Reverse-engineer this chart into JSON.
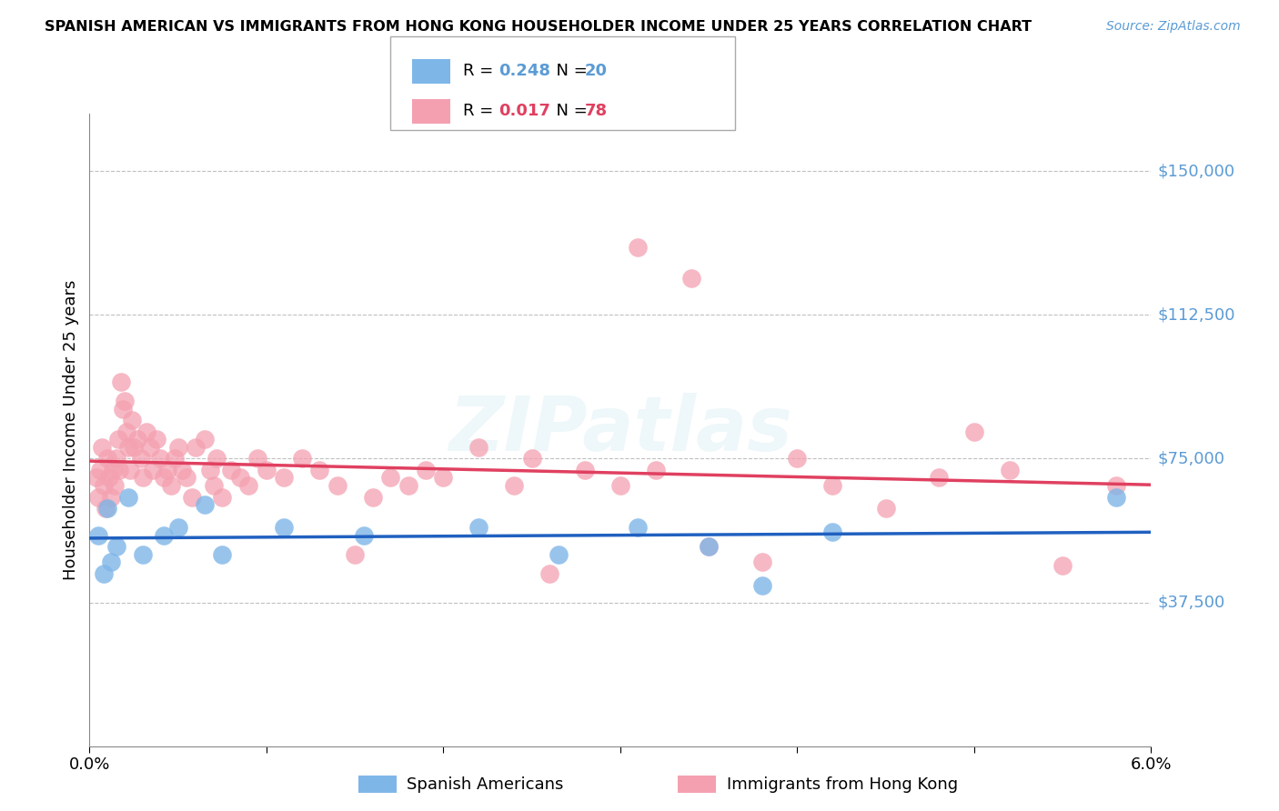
{
  "title": "SPANISH AMERICAN VS IMMIGRANTS FROM HONG KONG HOUSEHOLDER INCOME UNDER 25 YEARS CORRELATION CHART",
  "source": "Source: ZipAtlas.com",
  "ylabel": "Householder Income Under 25 years",
  "yticks": [
    0,
    37500,
    75000,
    112500,
    150000
  ],
  "ytick_labels": [
    "",
    "$37,500",
    "$75,000",
    "$112,500",
    "$150,000"
  ],
  "xlim": [
    0.0,
    6.0
  ],
  "ylim": [
    0,
    165000
  ],
  "blue_R": 0.248,
  "blue_N": 20,
  "pink_R": 0.017,
  "pink_N": 78,
  "blue_label": "Spanish Americans",
  "pink_label": "Immigrants from Hong Kong",
  "watermark": "ZIPatlas",
  "blue_color": "#7eb6e8",
  "pink_color": "#f4a0b0",
  "blue_line_color": "#2060c0",
  "pink_line_color": "#e04060",
  "blue_scatter_x": [
    0.05,
    0.08,
    0.1,
    0.12,
    0.15,
    0.22,
    0.3,
    0.42,
    0.5,
    0.65,
    0.75,
    1.1,
    1.55,
    2.2,
    2.65,
    3.1,
    3.5,
    3.8,
    4.2,
    5.8
  ],
  "blue_scatter_y": [
    55000,
    45000,
    62000,
    48000,
    52000,
    65000,
    50000,
    55000,
    57000,
    63000,
    50000,
    57000,
    55000,
    57000,
    50000,
    57000,
    52000,
    42000,
    56000,
    65000
  ],
  "pink_scatter_x": [
    0.04,
    0.05,
    0.06,
    0.07,
    0.08,
    0.09,
    0.1,
    0.11,
    0.12,
    0.13,
    0.14,
    0.15,
    0.16,
    0.17,
    0.18,
    0.19,
    0.2,
    0.21,
    0.22,
    0.23,
    0.24,
    0.25,
    0.27,
    0.29,
    0.3,
    0.32,
    0.34,
    0.36,
    0.38,
    0.4,
    0.42,
    0.44,
    0.46,
    0.48,
    0.5,
    0.52,
    0.55,
    0.58,
    0.6,
    0.65,
    0.68,
    0.7,
    0.72,
    0.75,
    0.8,
    0.85,
    0.9,
    0.95,
    1.0,
    1.1,
    1.2,
    1.3,
    1.4,
    1.5,
    1.6,
    1.7,
    1.8,
    1.9,
    2.0,
    2.2,
    2.4,
    2.6,
    2.8,
    3.0,
    3.2,
    3.5,
    3.8,
    4.0,
    4.2,
    4.5,
    4.8,
    5.0,
    5.2,
    5.5,
    5.8,
    3.1,
    3.4,
    2.5
  ],
  "pink_scatter_y": [
    70000,
    65000,
    72000,
    78000,
    68000,
    62000,
    75000,
    70000,
    65000,
    72000,
    68000,
    75000,
    80000,
    72000,
    95000,
    88000,
    90000,
    82000,
    78000,
    72000,
    85000,
    78000,
    80000,
    75000,
    70000,
    82000,
    78000,
    72000,
    80000,
    75000,
    70000,
    72000,
    68000,
    75000,
    78000,
    72000,
    70000,
    65000,
    78000,
    80000,
    72000,
    68000,
    75000,
    65000,
    72000,
    70000,
    68000,
    75000,
    72000,
    70000,
    75000,
    72000,
    68000,
    50000,
    65000,
    70000,
    68000,
    72000,
    70000,
    78000,
    68000,
    45000,
    72000,
    68000,
    72000,
    52000,
    48000,
    75000,
    68000,
    62000,
    70000,
    82000,
    72000,
    47000,
    68000,
    130000,
    122000,
    75000
  ]
}
